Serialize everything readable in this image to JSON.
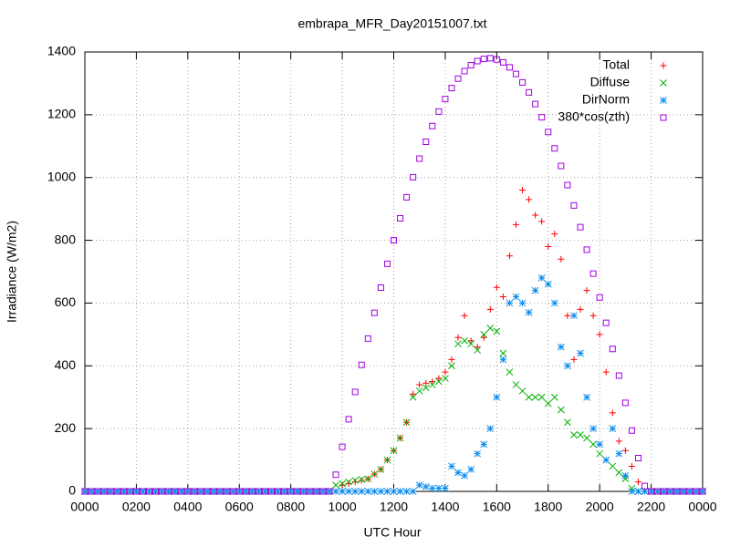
{
  "chart_data": {
    "type": "scatter",
    "title": "embrapa_MFR_Day20151007.txt",
    "xlabel": "UTC Hour",
    "ylabel": "Irradiance (W/m2)",
    "xlim": [
      0,
      24
    ],
    "ylim": [
      0,
      1400
    ],
    "xticks": [
      {
        "value": 0,
        "label": "0000"
      },
      {
        "value": 2,
        "label": "0200"
      },
      {
        "value": 4,
        "label": "0400"
      },
      {
        "value": 6,
        "label": "0600"
      },
      {
        "value": 8,
        "label": "0800"
      },
      {
        "value": 10,
        "label": "1000"
      },
      {
        "value": 12,
        "label": "1200"
      },
      {
        "value": 14,
        "label": "1400"
      },
      {
        "value": 16,
        "label": "1600"
      },
      {
        "value": 18,
        "label": "1800"
      },
      {
        "value": 20,
        "label": "2000"
      },
      {
        "value": 22,
        "label": "2200"
      },
      {
        "value": 24,
        "label": "0000"
      }
    ],
    "yticks": [
      0,
      200,
      400,
      600,
      800,
      1000,
      1200,
      1400
    ],
    "grid": true,
    "legend": "top right",
    "x": [
      0,
      0.25,
      0.5,
      0.75,
      1,
      1.25,
      1.5,
      1.75,
      2,
      2.25,
      2.5,
      2.75,
      3,
      3.25,
      3.5,
      3.75,
      4,
      4.25,
      4.5,
      4.75,
      5,
      5.25,
      5.5,
      5.75,
      6,
      6.25,
      6.5,
      6.75,
      7,
      7.25,
      7.5,
      7.75,
      8,
      8.25,
      8.5,
      8.75,
      9,
      9.25,
      9.5,
      9.75,
      10,
      10.25,
      10.5,
      10.75,
      11,
      11.25,
      11.5,
      11.75,
      12,
      12.25,
      12.5,
      12.75,
      13,
      13.25,
      13.5,
      13.75,
      14,
      14.25,
      14.5,
      14.75,
      15,
      15.25,
      15.5,
      15.75,
      16,
      16.25,
      16.5,
      16.75,
      17,
      17.25,
      17.5,
      17.75,
      18,
      18.25,
      18.5,
      18.75,
      19,
      19.25,
      19.5,
      19.75,
      20,
      20.25,
      20.5,
      20.75,
      21,
      21.25,
      21.5,
      21.75,
      22,
      22.25,
      22.5,
      22.75,
      23,
      23.25,
      23.5,
      23.75,
      24
    ],
    "series": [
      {
        "name": "Total",
        "color": "#ff0000",
        "marker": "plus",
        "values": [
          0,
          0,
          0,
          0,
          0,
          0,
          0,
          0,
          0,
          0,
          0,
          0,
          0,
          0,
          0,
          0,
          0,
          0,
          0,
          0,
          0,
          0,
          0,
          0,
          0,
          0,
          0,
          0,
          0,
          0,
          0,
          0,
          0,
          0,
          0,
          0,
          0,
          0,
          0,
          0,
          20,
          25,
          30,
          35,
          40,
          55,
          70,
          100,
          130,
          170,
          220,
          310,
          340,
          345,
          350,
          360,
          380,
          420,
          490,
          560,
          480,
          460,
          490,
          580,
          650,
          620,
          750,
          850,
          960,
          930,
          880,
          860,
          780,
          820,
          740,
          560,
          420,
          580,
          640,
          560,
          500,
          380,
          250,
          160,
          130,
          80,
          30,
          0,
          0,
          0,
          0,
          0,
          0,
          0,
          0,
          0,
          0
        ]
      },
      {
        "name": "Diffuse",
        "color": "#00b000",
        "marker": "cross",
        "values": [
          0,
          0,
          0,
          0,
          0,
          0,
          0,
          0,
          0,
          0,
          0,
          0,
          0,
          0,
          0,
          0,
          0,
          0,
          0,
          0,
          0,
          0,
          0,
          0,
          0,
          0,
          0,
          0,
          0,
          0,
          0,
          0,
          0,
          0,
          0,
          0,
          0,
          0,
          0,
          20,
          25,
          30,
          35,
          38,
          40,
          55,
          70,
          100,
          130,
          170,
          220,
          300,
          320,
          330,
          340,
          350,
          360,
          400,
          470,
          480,
          470,
          450,
          500,
          520,
          510,
          440,
          380,
          340,
          320,
          300,
          300,
          300,
          280,
          300,
          260,
          220,
          180,
          180,
          170,
          150,
          120,
          100,
          80,
          60,
          40,
          10,
          0,
          0,
          0,
          0,
          0,
          0,
          0,
          0,
          0,
          0,
          0
        ]
      },
      {
        "name": "DirNorm",
        "color": "#0a8cf0",
        "marker": "star",
        "values": [
          0,
          0,
          0,
          0,
          0,
          0,
          0,
          0,
          0,
          0,
          0,
          0,
          0,
          0,
          0,
          0,
          0,
          0,
          0,
          0,
          0,
          0,
          0,
          0,
          0,
          0,
          0,
          0,
          0,
          0,
          0,
          0,
          0,
          0,
          0,
          0,
          0,
          0,
          0,
          0,
          0,
          0,
          0,
          0,
          0,
          0,
          0,
          0,
          0,
          0,
          0,
          0,
          20,
          15,
          10,
          10,
          10,
          80,
          60,
          50,
          70,
          120,
          150,
          200,
          300,
          420,
          600,
          620,
          600,
          570,
          640,
          680,
          660,
          600,
          460,
          400,
          560,
          440,
          300,
          200,
          150,
          100,
          200,
          120,
          50,
          0,
          0,
          0,
          0,
          0,
          0,
          0,
          0,
          0,
          0,
          0,
          0
        ]
      },
      {
        "name": "380*cos(zth)",
        "color": "#a000e0",
        "marker": "square",
        "values": [
          0,
          0,
          0,
          0,
          0,
          0,
          0,
          0,
          0,
          0,
          0,
          0,
          0,
          0,
          0,
          0,
          0,
          0,
          0,
          0,
          0,
          0,
          0,
          0,
          0,
          0,
          0,
          0,
          0,
          0,
          0,
          0,
          0,
          0,
          0,
          0,
          0,
          0,
          0,
          53,
          142,
          230,
          317,
          403,
          487,
          569,
          649,
          725,
          800,
          870,
          937,
          1001,
          1060,
          1114,
          1164,
          1210,
          1250,
          1285,
          1315,
          1339,
          1358,
          1371,
          1378,
          1380,
          1376,
          1367,
          1351,
          1330,
          1303,
          1271,
          1234,
          1192,
          1145,
          1093,
          1037,
          976,
          911,
          842,
          770,
          694,
          618,
          537,
          454,
          369,
          282,
          194,
          106,
          17,
          0,
          0,
          0,
          0,
          0,
          0,
          0,
          0,
          0
        ]
      }
    ]
  }
}
